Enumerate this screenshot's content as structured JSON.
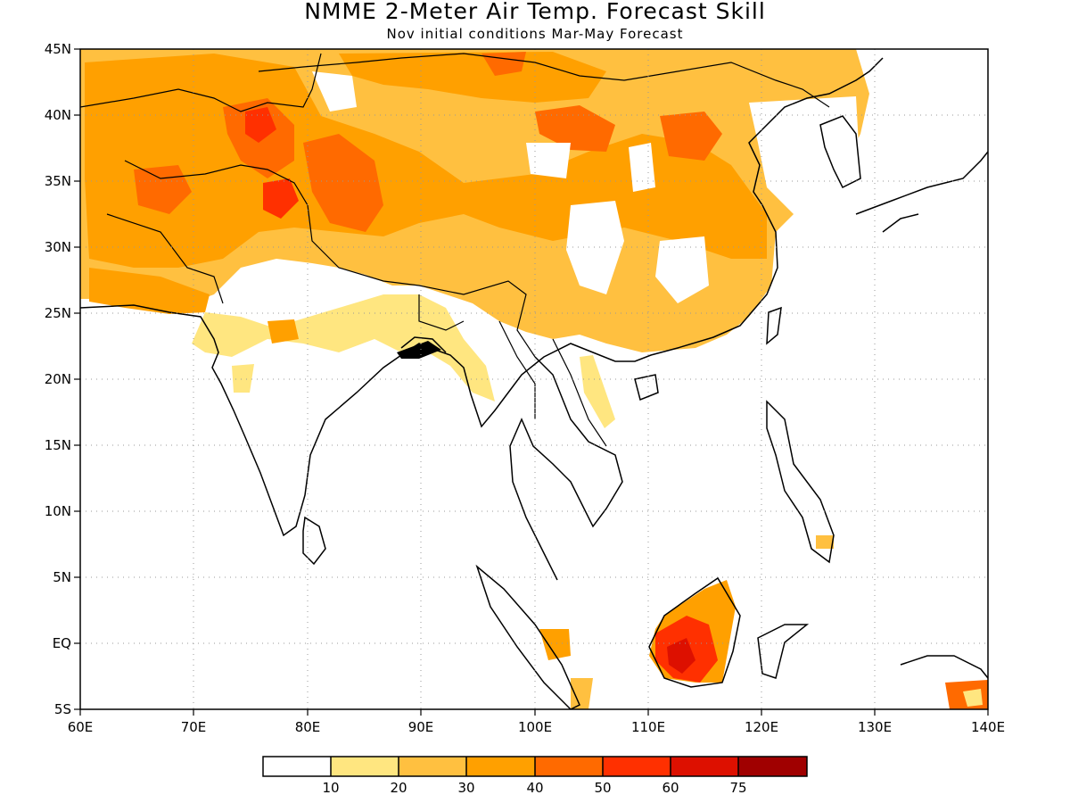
{
  "title": "NMME 2-Meter Air Temp. Forecast Skill",
  "subtitle": "Nov initial conditions  Mar-May Forecast",
  "map": {
    "lon_range": [
      60,
      140
    ],
    "lat_range": [
      -5,
      45
    ],
    "lon_ticks": [
      "60E",
      "70E",
      "80E",
      "90E",
      "100E",
      "110E",
      "120E",
      "130E",
      "140E"
    ],
    "lat_ticks": [
      "45N",
      "40N",
      "35N",
      "30N",
      "25N",
      "20N",
      "15N",
      "10N",
      "5N",
      "EQ",
      "5S"
    ],
    "gridlines": "dotted"
  },
  "colorbar": {
    "labels": [
      "10",
      "20",
      "30",
      "40",
      "50",
      "60",
      "75"
    ],
    "colors": [
      "#ffffff",
      "#ffe680",
      "#ffc040",
      "#ffa000",
      "#ff6a00",
      "#ff3000",
      "#dd1000",
      "#a00000"
    ]
  }
}
